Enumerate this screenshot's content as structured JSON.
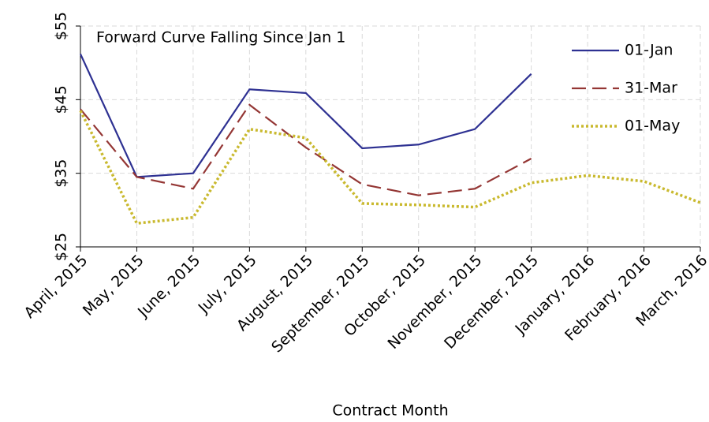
{
  "chart_data": {
    "type": "line",
    "title": "Forward Curve Falling Since Jan 1",
    "x_label": "Contract Month",
    "categories": [
      "April, 2015",
      "May, 2015",
      "June, 2015",
      "July, 2015",
      "August, 2015",
      "September, 2015",
      "October, 2015",
      "November, 2015",
      "December, 2015",
      "January, 2016",
      "February, 2016",
      "March, 2016"
    ],
    "series": [
      {
        "name": "01-Jan",
        "color": "#2e3192",
        "line_style": "solid",
        "values": [
          51.2,
          34.5,
          35.0,
          46.4,
          45.9,
          38.4,
          38.9,
          41.0,
          48.5,
          null,
          null,
          null
        ]
      },
      {
        "name": "31-Mar",
        "color": "#943634",
        "line_style": "dashed",
        "values": [
          43.7,
          34.5,
          32.9,
          44.3,
          38.5,
          33.5,
          32.0,
          32.9,
          37.0,
          null,
          null,
          null
        ]
      },
      {
        "name": "01-May",
        "color": "#c9b92e",
        "line_style": "dotted",
        "values": [
          43.5,
          28.2,
          29.0,
          41.0,
          39.8,
          30.9,
          30.7,
          30.4,
          33.7,
          34.7,
          33.9,
          31.0
        ]
      }
    ],
    "ylim": [
      25,
      55
    ],
    "yticks": [
      {
        "value": 25,
        "label": "$25"
      },
      {
        "value": 35,
        "label": "$35"
      },
      {
        "value": 45,
        "label": "$45"
      },
      {
        "value": 55,
        "label": "$55"
      }
    ],
    "grid": true,
    "legend": "upper right"
  }
}
